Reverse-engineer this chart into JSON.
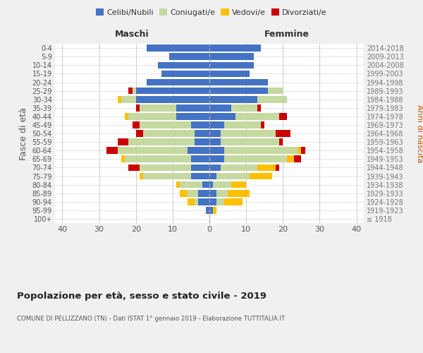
{
  "age_groups": [
    "100+",
    "95-99",
    "90-94",
    "85-89",
    "80-84",
    "75-79",
    "70-74",
    "65-69",
    "60-64",
    "55-59",
    "50-54",
    "45-49",
    "40-44",
    "35-39",
    "30-34",
    "25-29",
    "20-24",
    "15-19",
    "10-14",
    "5-9",
    "0-4"
  ],
  "birth_years": [
    "≤ 1918",
    "1919-1923",
    "1924-1928",
    "1929-1933",
    "1934-1938",
    "1939-1943",
    "1944-1948",
    "1949-1953",
    "1954-1958",
    "1959-1963",
    "1964-1968",
    "1969-1973",
    "1974-1978",
    "1979-1983",
    "1984-1988",
    "1989-1993",
    "1994-1998",
    "1999-2003",
    "2004-2008",
    "2009-2013",
    "2014-2018"
  ],
  "colors": {
    "celibe": "#4472c4",
    "coniugato": "#c5d9a0",
    "vedovo": "#ffc000",
    "divorziato": "#cc0000"
  },
  "maschi": {
    "celibe": [
      0,
      1,
      3,
      3,
      2,
      5,
      5,
      5,
      6,
      4,
      4,
      5,
      9,
      9,
      20,
      20,
      17,
      13,
      14,
      11,
      17
    ],
    "coniugato": [
      0,
      0,
      1,
      3,
      6,
      13,
      14,
      18,
      19,
      18,
      14,
      14,
      13,
      10,
      4,
      1,
      0,
      0,
      0,
      0,
      0
    ],
    "vedovo": [
      0,
      0,
      2,
      2,
      1,
      1,
      0,
      1,
      0,
      0,
      0,
      0,
      1,
      0,
      1,
      0,
      0,
      0,
      0,
      0,
      0
    ],
    "divorziato": [
      0,
      0,
      0,
      0,
      0,
      0,
      3,
      0,
      3,
      3,
      2,
      2,
      0,
      1,
      0,
      1,
      0,
      0,
      0,
      0,
      0
    ]
  },
  "femmine": {
    "nubile": [
      0,
      1,
      2,
      2,
      1,
      2,
      3,
      4,
      4,
      3,
      3,
      4,
      7,
      6,
      13,
      16,
      16,
      11,
      12,
      12,
      14
    ],
    "coniugata": [
      0,
      0,
      2,
      3,
      5,
      9,
      10,
      17,
      20,
      16,
      15,
      10,
      12,
      7,
      8,
      4,
      0,
      0,
      0,
      0,
      0
    ],
    "vedova": [
      0,
      1,
      5,
      6,
      4,
      6,
      5,
      2,
      1,
      0,
      0,
      0,
      0,
      0,
      0,
      0,
      0,
      0,
      0,
      0,
      0
    ],
    "divorziata": [
      0,
      0,
      0,
      0,
      0,
      0,
      1,
      2,
      1,
      1,
      4,
      1,
      2,
      1,
      0,
      0,
      0,
      0,
      0,
      0,
      0
    ]
  },
  "xlim": 42,
  "title": "Popolazione per età, sesso e stato civile - 2019",
  "subtitle": "COMUNE DI PELLIZZANO (TN) - Dati ISTAT 1° gennaio 2019 - Elaborazione TUTTITALIA.IT",
  "ylabel_left": "Fasce di età",
  "ylabel_right": "Anni di nascita",
  "xlabel_left": "Maschi",
  "xlabel_right": "Femmine",
  "bg_color": "#f0f0f0",
  "plot_bg": "#ffffff",
  "grid_color": "#cccccc"
}
